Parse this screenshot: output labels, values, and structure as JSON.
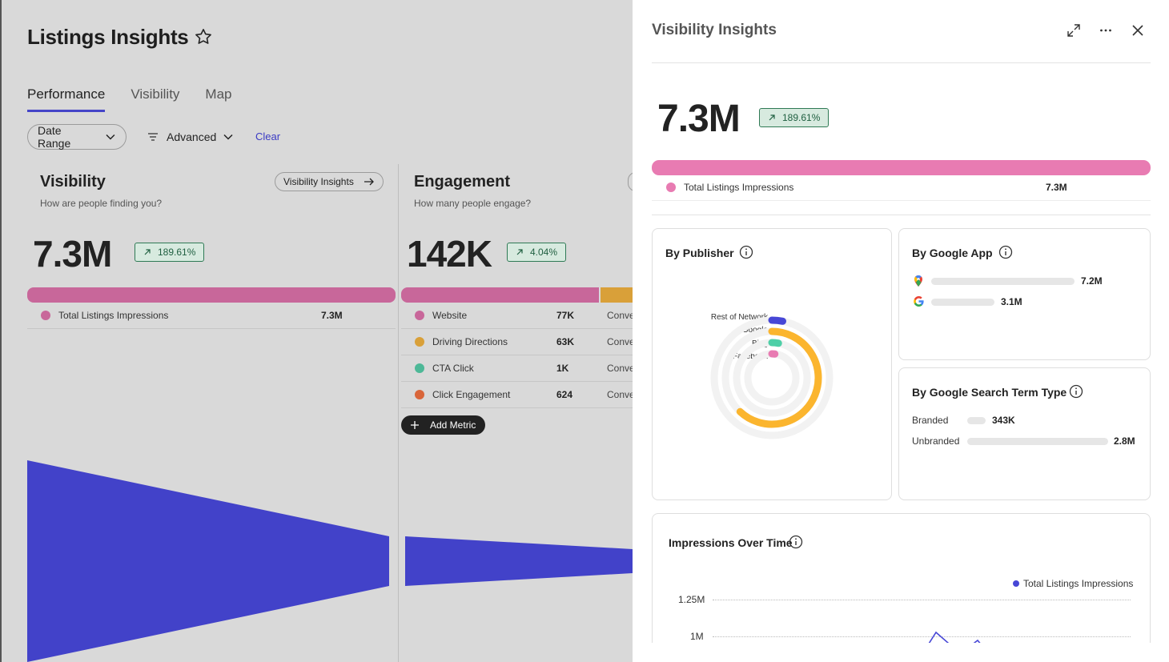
{
  "app": {
    "title": "Listings Insights",
    "tabs": [
      {
        "label": "Performance",
        "active": true
      },
      {
        "label": "Visibility",
        "active": false
      },
      {
        "label": "Map",
        "active": false
      }
    ],
    "filters": {
      "date_range": "Date Range",
      "advanced": "Advanced",
      "clear": "Clear"
    },
    "visibility_card": {
      "title": "Visibility",
      "subtitle": "How are people finding you?",
      "button": "Visibility Insights",
      "value": "7.3M",
      "change": "189.61%",
      "legend": [
        {
          "label": "Total Listings Impressions",
          "value": "7.3M",
          "color": "#c8679a"
        }
      ]
    },
    "engagement_card": {
      "title": "Engagement",
      "subtitle": "How many people engage?",
      "value": "142K",
      "change": "4.04%",
      "legend": [
        {
          "label": "Website",
          "value": "77K",
          "color": "#c8679a",
          "extra": "Conve"
        },
        {
          "label": "Driving Directions",
          "value": "63K",
          "color": "#d9a039",
          "extra": "Conve"
        },
        {
          "label": "CTA Click",
          "value": "1K",
          "color": "#4db897",
          "extra": "Conve"
        },
        {
          "label": "Click Engagement",
          "value": "624",
          "color": "#d9663a",
          "extra": "Conve"
        }
      ],
      "add_metric": "Add Metric"
    },
    "funnel_color": "#4242c9"
  },
  "drawer": {
    "title": "Visibility Insights",
    "value": "7.3M",
    "change": "189.61%",
    "legend": {
      "label": "Total Listings Impressions",
      "value": "7.3M",
      "color": "#e87bb2"
    },
    "by_publisher": {
      "title": "By Publisher",
      "items": [
        {
          "label": "Rest of Network",
          "share": 0.03,
          "color": "#4747d6"
        },
        {
          "label": "Google",
          "share": 0.62,
          "color": "#fbb52e"
        },
        {
          "label": "Bing",
          "share": 0.03,
          "color": "#4ecfa7"
        },
        {
          "label": "Facebook",
          "share": 0.02,
          "color": "#e87bb2"
        }
      ]
    },
    "by_google_app": {
      "title": "By Google App",
      "items": [
        {
          "icon": "google-maps-icon",
          "value": "7.2M"
        },
        {
          "icon": "google-g-icon",
          "value": "3.1M"
        }
      ]
    },
    "by_search_term": {
      "title": "By Google Search Term Type",
      "items": [
        {
          "label": "Branded",
          "value": "343K"
        },
        {
          "label": "Unbranded",
          "value": "2.8M"
        }
      ]
    },
    "impressions_over_time": {
      "title": "Impressions Over Time",
      "legend": "Total Listings Impressions",
      "y_ticks": [
        "1.25M",
        "1M"
      ]
    }
  }
}
